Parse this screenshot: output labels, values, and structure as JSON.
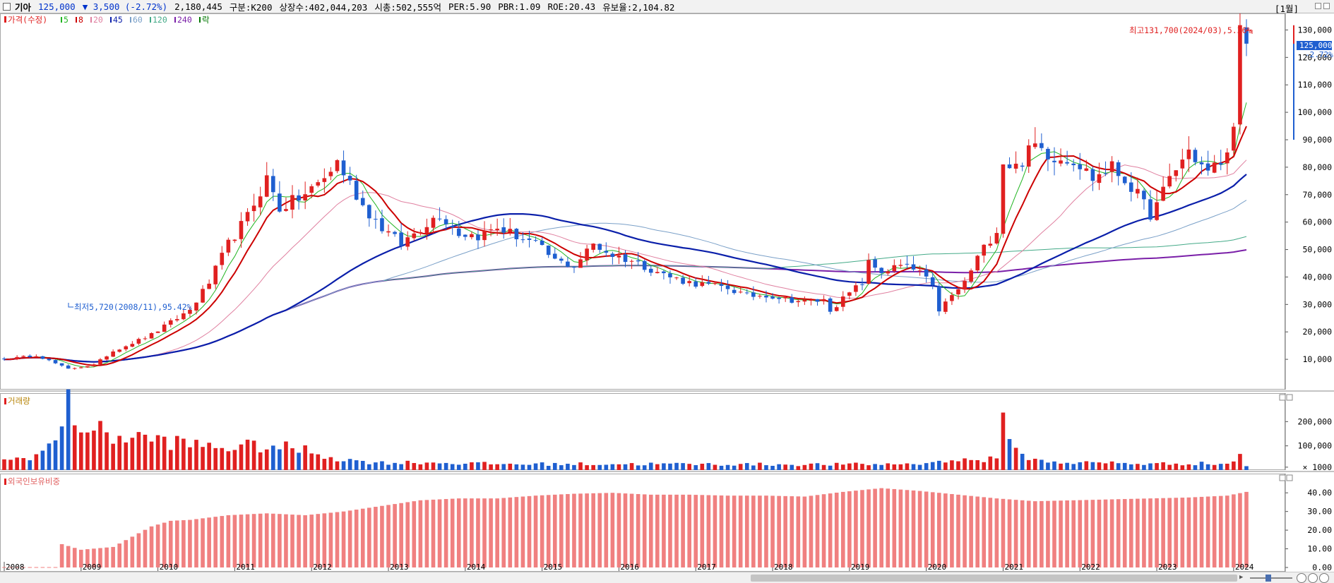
{
  "header": {
    "name": "기아",
    "price": "125,000",
    "change": "▼ 3,500 (-2.72%)",
    "volume": "2,180,445",
    "board": "구분:K200",
    "shares": "상장수:402,044,203",
    "marketcap": "시총:502,555억",
    "per": "PER:5.90",
    "pbr": "PBR:1.09",
    "roe": "ROE:20.43",
    "retention": "유보율:2,104.82",
    "period": "[1월]"
  },
  "colors": {
    "up": "#e02020",
    "down": "#1f5fd0",
    "ma5": "#22b522",
    "ma8": "#cc0000",
    "ma20": "#e080a0",
    "ma45": "#0a1faa",
    "ma60": "#7aa0c8",
    "ma120": "#44aa88",
    "ma240": "#7a1fa8",
    "foreign": "#f08080"
  },
  "price_legend": {
    "title": "가격(수정)",
    "items": [
      {
        "label": "5",
        "color": "#22b522"
      },
      {
        "label": "8",
        "color": "#cc0000"
      },
      {
        "label": "20",
        "color": "#e080a0"
      },
      {
        "label": "45",
        "color": "#0a1faa"
      },
      {
        "label": "60",
        "color": "#7aa0c8"
      },
      {
        "label": "120",
        "color": "#44aa88"
      },
      {
        "label": "240",
        "color": "#7a1fa8"
      },
      {
        "label": "락",
        "color": "#007700"
      }
    ]
  },
  "volume_panel": {
    "title": "거래량",
    "ticks": [
      "200,000",
      "100,000",
      "× 1000"
    ]
  },
  "foreign_panel": {
    "title": "외국인보유비중",
    "ticks": [
      "40.00",
      "30.00",
      "20.00",
      "10.00",
      "0.00"
    ]
  },
  "annotations": {
    "high": "최고131,700(2024/03),5.36%",
    "low": "최저5,720(2008/11),95.42%",
    "last_price": "125,000",
    "last_change": "-2.72%"
  },
  "chart_data": {
    "type": "candlestick",
    "interval": "monthly",
    "start": "2008-01",
    "end": "2024-03",
    "x_tick_labels": [
      "2008",
      "2009",
      "2010",
      "2011",
      "2012",
      "2013",
      "2014",
      "2015",
      "2016",
      "2017",
      "2018",
      "2019",
      "2020",
      "2021",
      "2022",
      "2023",
      "2024"
    ],
    "price_axis": {
      "ylim": [
        0,
        135000
      ],
      "ticks": [
        "130,000",
        "120,000",
        "110,000",
        "100,000",
        "90,000",
        "80,000",
        "70,000",
        "60,000",
        "50,000",
        "40,000",
        "30,000",
        "20,000",
        "10,000"
      ]
    },
    "close_anchors": [
      [
        "2008-01",
        10000
      ],
      [
        "2008-06",
        11500
      ],
      [
        "2008-10",
        7500
      ],
      [
        "2008-11",
        6500
      ],
      [
        "2009-03",
        8000
      ],
      [
        "2009-06",
        13000
      ],
      [
        "2009-12",
        19000
      ],
      [
        "2010-06",
        28000
      ],
      [
        "2010-09",
        38000
      ],
      [
        "2010-12",
        52000
      ],
      [
        "2011-03",
        62000
      ],
      [
        "2011-06",
        76000
      ],
      [
        "2011-08",
        65000
      ],
      [
        "2011-12",
        70000
      ],
      [
        "2012-03",
        76000
      ],
      [
        "2012-05",
        82000
      ],
      [
        "2012-09",
        66000
      ],
      [
        "2012-12",
        58000
      ],
      [
        "2013-03",
        52000
      ],
      [
        "2013-06",
        58000
      ],
      [
        "2013-09",
        63000
      ],
      [
        "2013-12",
        56000
      ],
      [
        "2014-03",
        55000
      ],
      [
        "2014-06",
        58000
      ],
      [
        "2014-09",
        55000
      ],
      [
        "2014-12",
        52000
      ],
      [
        "2015-03",
        46000
      ],
      [
        "2015-06",
        44000
      ],
      [
        "2015-09",
        52000
      ],
      [
        "2015-12",
        48000
      ],
      [
        "2016-03",
        46000
      ],
      [
        "2016-06",
        43000
      ],
      [
        "2016-09",
        40000
      ],
      [
        "2016-12",
        38000
      ],
      [
        "2017-03",
        37000
      ],
      [
        "2017-06",
        36000
      ],
      [
        "2017-09",
        33000
      ],
      [
        "2017-12",
        33500
      ],
      [
        "2018-03",
        32000
      ],
      [
        "2018-06",
        31000
      ],
      [
        "2018-09",
        31500
      ],
      [
        "2018-10",
        28000
      ],
      [
        "2018-12",
        32000
      ],
      [
        "2019-03",
        38000
      ],
      [
        "2019-04",
        45000
      ],
      [
        "2019-06",
        42000
      ],
      [
        "2019-09",
        44000
      ],
      [
        "2019-12",
        42000
      ],
      [
        "2020-02",
        36000
      ],
      [
        "2020-03",
        28000
      ],
      [
        "2020-05",
        33000
      ],
      [
        "2020-07",
        38000
      ],
      [
        "2020-09",
        47000
      ],
      [
        "2020-12",
        57500
      ],
      [
        "2021-01",
        82000
      ],
      [
        "2021-03",
        80000
      ],
      [
        "2021-06",
        88000
      ],
      [
        "2021-09",
        84000
      ],
      [
        "2021-12",
        83000
      ],
      [
        "2022-03",
        76000
      ],
      [
        "2022-06",
        80000
      ],
      [
        "2022-09",
        73000
      ],
      [
        "2022-12",
        63000
      ],
      [
        "2023-01",
        66000
      ],
      [
        "2023-03",
        76000
      ],
      [
        "2023-06",
        86000
      ],
      [
        "2023-09",
        78000
      ],
      [
        "2023-12",
        84000
      ],
      [
        "2024-01",
        98000
      ],
      [
        "2024-02",
        128500
      ],
      [
        "2024-03",
        125000
      ]
    ],
    "moving_averages": [
      "5",
      "8",
      "20",
      "45",
      "60",
      "120",
      "240"
    ],
    "volume_axis": {
      "ylim": [
        0,
        300000
      ],
      "unit": "× 1000"
    },
    "volume_anchors": [
      [
        "2008-01",
        38000
      ],
      [
        "2008-06",
        62000
      ],
      [
        "2008-09",
        115000
      ],
      [
        "2008-10",
        200000
      ],
      [
        "2008-11",
        265000
      ],
      [
        "2009-01",
        185000
      ],
      [
        "2009-06",
        140000
      ],
      [
        "2009-12",
        130000
      ],
      [
        "2010-06",
        105000
      ],
      [
        "2010-12",
        95000
      ],
      [
        "2011-06",
        100000
      ],
      [
        "2011-12",
        82000
      ],
      [
        "2012-06",
        42000
      ],
      [
        "2012-12",
        30000
      ],
      [
        "2013-06",
        32000
      ],
      [
        "2014-06",
        25000
      ],
      [
        "2015-06",
        25000
      ],
      [
        "2016-06",
        25000
      ],
      [
        "2017-06",
        24000
      ],
      [
        "2018-06",
        23000
      ],
      [
        "2019-06",
        24000
      ],
      [
        "2020-02",
        28000
      ],
      [
        "2020-03",
        45000
      ],
      [
        "2020-06",
        40000
      ],
      [
        "2020-12",
        45000
      ],
      [
        "2021-01",
        185000
      ],
      [
        "2021-02",
        178000
      ],
      [
        "2021-03",
        80000
      ],
      [
        "2021-06",
        40000
      ],
      [
        "2021-12",
        30000
      ],
      [
        "2022-06",
        30000
      ],
      [
        "2022-12",
        25000
      ],
      [
        "2023-06",
        28000
      ],
      [
        "2023-12",
        25000
      ],
      [
        "2024-01",
        40000
      ],
      [
        "2024-02",
        65000
      ],
      [
        "2024-03",
        18000
      ]
    ],
    "foreign_axis": {
      "ylim": [
        0,
        45
      ]
    },
    "foreign_anchors": [
      [
        "2008-01",
        0.2
      ],
      [
        "2008-09",
        0.2
      ],
      [
        "2008-10",
        12.5
      ],
      [
        "2009-01",
        9.5
      ],
      [
        "2009-06",
        11
      ],
      [
        "2009-12",
        22
      ],
      [
        "2010-03",
        25
      ],
      [
        "2010-06",
        25.5
      ],
      [
        "2010-12",
        28
      ],
      [
        "2011-06",
        29
      ],
      [
        "2011-12",
        28
      ],
      [
        "2012-06",
        30
      ],
      [
        "2012-12",
        33
      ],
      [
        "2013-06",
        36
      ],
      [
        "2013-12",
        37
      ],
      [
        "2014-06",
        37
      ],
      [
        "2014-12",
        38.5
      ],
      [
        "2015-06",
        39.5
      ],
      [
        "2015-12",
        40
      ],
      [
        "2016-06",
        39
      ],
      [
        "2016-12",
        39
      ],
      [
        "2017-06",
        38.5
      ],
      [
        "2017-12",
        38.5
      ],
      [
        "2018-06",
        38
      ],
      [
        "2018-12",
        40.5
      ],
      [
        "2019-06",
        42.5
      ],
      [
        "2019-12",
        41
      ],
      [
        "2020-06",
        39
      ],
      [
        "2020-12",
        37
      ],
      [
        "2021-06",
        35.5
      ],
      [
        "2021-12",
        36
      ],
      [
        "2022-06",
        36.5
      ],
      [
        "2022-12",
        37
      ],
      [
        "2023-06",
        37.5
      ],
      [
        "2023-12",
        38.5
      ],
      [
        "2024-03",
        40.5
      ]
    ]
  }
}
